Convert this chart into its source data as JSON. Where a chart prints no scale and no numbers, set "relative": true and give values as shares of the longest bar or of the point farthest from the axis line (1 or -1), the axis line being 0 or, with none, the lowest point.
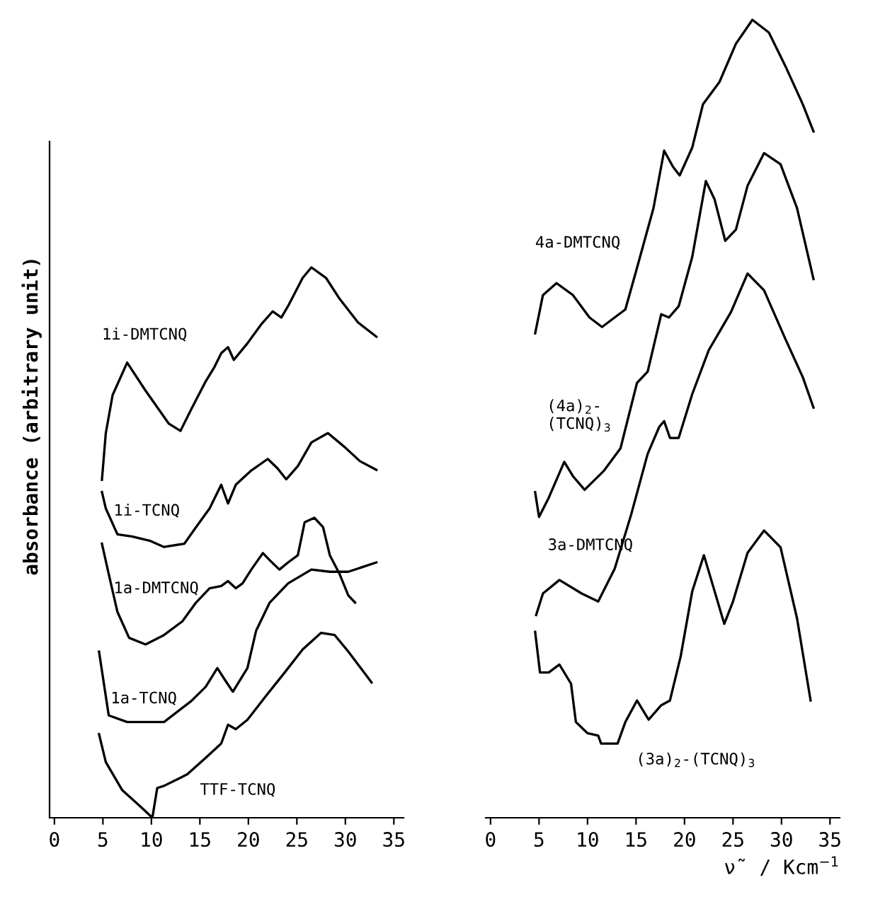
{
  "chart_data": [
    {
      "type": "line",
      "relative": true,
      "ylabel": "absorbance (arbitrary unit)",
      "xlim": [
        -0.5,
        36
      ],
      "xticks": [
        0,
        5,
        10,
        15,
        20,
        25,
        30,
        35
      ],
      "tick_labels": "x",
      "grid": false,
      "legend": false,
      "marker": "none",
      "line_style": "solid",
      "series": [
        {
          "name": "1i-DMTCNQ",
          "color": "#000000",
          "x": [
            4.9,
            5.3,
            6.0,
            7.5,
            9.4,
            11.8,
            13.0,
            14.1,
            15.6,
            16.5,
            17.2,
            17.9,
            18.5,
            19.9,
            21.3,
            22.5,
            23.4,
            24.1,
            25.6,
            26.5,
            28.0,
            29.4,
            31.3,
            33.2
          ],
          "values": [
            0.614,
            0.699,
            0.768,
            0.827,
            0.776,
            0.716,
            0.703,
            0.742,
            0.793,
            0.819,
            0.844,
            0.855,
            0.832,
            0.862,
            0.896,
            0.92,
            0.909,
            0.93,
            0.981,
            1.0,
            0.981,
            0.943,
            0.9,
            0.874
          ]
        },
        {
          "name": "1i-TCNQ",
          "color": "#000000",
          "x": [
            4.9,
            5.3,
            6.5,
            8.0,
            9.9,
            11.3,
            13.4,
            14.6,
            16.0,
            17.2,
            17.9,
            18.7,
            20.3,
            22.0,
            23.0,
            23.9,
            25.1,
            26.5,
            28.2,
            29.9,
            31.5,
            33.2
          ],
          "values": [
            0.592,
            0.562,
            0.515,
            0.511,
            0.503,
            0.492,
            0.498,
            0.528,
            0.562,
            0.605,
            0.571,
            0.605,
            0.631,
            0.652,
            0.635,
            0.615,
            0.639,
            0.682,
            0.699,
            0.674,
            0.648,
            0.632
          ]
        },
        {
          "name": "1a-DMTCNQ",
          "color": "#000000",
          "x": [
            4.9,
            5.6,
            6.5,
            7.7,
            9.4,
            11.3,
            13.2,
            14.6,
            16.0,
            17.2,
            17.9,
            18.7,
            19.4,
            20.3,
            21.5,
            22.2,
            23.2,
            24.1,
            25.1,
            25.8,
            26.8,
            27.7,
            28.4,
            29.4,
            30.3,
            31.0
          ],
          "values": [
            0.498,
            0.443,
            0.374,
            0.327,
            0.315,
            0.332,
            0.357,
            0.391,
            0.417,
            0.421,
            0.43,
            0.417,
            0.426,
            0.451,
            0.481,
            0.468,
            0.451,
            0.464,
            0.477,
            0.537,
            0.545,
            0.528,
            0.477,
            0.443,
            0.404,
            0.391
          ]
        },
        {
          "name": "1a-TCNQ",
          "color": "#000000",
          "x": [
            4.6,
            5.6,
            7.5,
            11.3,
            14.1,
            15.6,
            16.8,
            17.6,
            18.4,
            19.9,
            20.8,
            22.2,
            24.1,
            26.5,
            28.4,
            30.3,
            33.2
          ],
          "values": [
            0.302,
            0.186,
            0.174,
            0.174,
            0.212,
            0.238,
            0.272,
            0.25,
            0.229,
            0.272,
            0.34,
            0.391,
            0.426,
            0.451,
            0.447,
            0.447,
            0.464
          ]
        },
        {
          "name": "TTF-TCNQ",
          "color": "#000000",
          "x": [
            4.6,
            5.3,
            7.0,
            8.9,
            10.1,
            10.6,
            11.3,
            13.7,
            15.6,
            17.2,
            17.9,
            18.7,
            19.9,
            21.8,
            23.7,
            25.6,
            27.5,
            28.9,
            30.3,
            32.7
          ],
          "values": [
            0.152,
            0.101,
            0.05,
            0.02,
            0.0,
            0.054,
            0.058,
            0.079,
            0.109,
            0.135,
            0.169,
            0.161,
            0.178,
            0.221,
            0.263,
            0.306,
            0.336,
            0.332,
            0.302,
            0.246
          ]
        }
      ]
    },
    {
      "type": "line",
      "relative": true,
      "xlabel": "ν̃ / Kcm$^{−1}$",
      "xlim": [
        -0.5,
        36
      ],
      "xticks": [
        0,
        5,
        10,
        15,
        20,
        25,
        30,
        35
      ],
      "tick_labels": "x",
      "grid": false,
      "legend": false,
      "marker": "none",
      "line_style": "solid",
      "series": [
        {
          "name": "4a-DMTCNQ",
          "color": "#000000",
          "x": [
            4.6,
            5.4,
            6.8,
            8.5,
            10.2,
            11.5,
            12.8,
            13.9,
            15.1,
            16.8,
            17.9,
            18.8,
            19.5,
            20.8,
            21.9,
            23.6,
            25.3,
            27.0,
            28.7,
            30.4,
            32.2,
            33.3
          ],
          "values": [
            0.607,
            0.655,
            0.67,
            0.655,
            0.627,
            0.615,
            0.627,
            0.637,
            0.689,
            0.764,
            0.836,
            0.816,
            0.805,
            0.84,
            0.894,
            0.922,
            0.97,
            1.0,
            0.984,
            0.942,
            0.894,
            0.86
          ]
        },
        {
          "name": "(4a)$_{2}$-\n(TCNQ)$_{3}$",
          "color": "#000000",
          "x": [
            4.6,
            5.0,
            6.0,
            7.6,
            8.5,
            9.7,
            11.7,
            13.4,
            15.1,
            16.2,
            17.6,
            18.4,
            19.4,
            20.8,
            22.2,
            23.1,
            24.2,
            25.3,
            26.5,
            28.2,
            29.9,
            31.6,
            33.3
          ],
          "values": [
            0.408,
            0.377,
            0.401,
            0.446,
            0.428,
            0.411,
            0.435,
            0.463,
            0.545,
            0.559,
            0.631,
            0.627,
            0.641,
            0.703,
            0.798,
            0.775,
            0.723,
            0.737,
            0.792,
            0.833,
            0.819,
            0.764,
            0.675
          ]
        },
        {
          "name": "3a-DMTCNQ",
          "color": "#000000",
          "x": [
            4.7,
            5.4,
            7.1,
            9.4,
            11.1,
            12.8,
            14.5,
            16.2,
            17.4,
            17.9,
            18.5,
            19.4,
            20.8,
            22.5,
            24.8,
            26.5,
            28.2,
            30.4,
            32.2,
            33.3
          ],
          "values": [
            0.254,
            0.281,
            0.298,
            0.281,
            0.271,
            0.312,
            0.38,
            0.456,
            0.49,
            0.497,
            0.476,
            0.476,
            0.531,
            0.586,
            0.634,
            0.682,
            0.661,
            0.6,
            0.552,
            0.514
          ]
        },
        {
          "name": "(3a)$_{2}$-(TCNQ)$_{3}$",
          "color": "#000000",
          "x": [
            4.6,
            5.1,
            6.0,
            7.1,
            8.3,
            8.8,
            10.0,
            11.1,
            11.4,
            13.1,
            13.9,
            15.1,
            16.3,
            17.6,
            18.5,
            19.6,
            20.8,
            22.0,
            23.1,
            24.1,
            25.0,
            26.5,
            28.2,
            29.9,
            31.6,
            33.0
          ],
          "values": [
            0.233,
            0.182,
            0.182,
            0.192,
            0.168,
            0.12,
            0.106,
            0.103,
            0.093,
            0.093,
            0.12,
            0.147,
            0.123,
            0.141,
            0.147,
            0.202,
            0.284,
            0.329,
            0.284,
            0.243,
            0.271,
            0.332,
            0.36,
            0.339,
            0.25,
            0.147
          ]
        }
      ]
    }
  ]
}
